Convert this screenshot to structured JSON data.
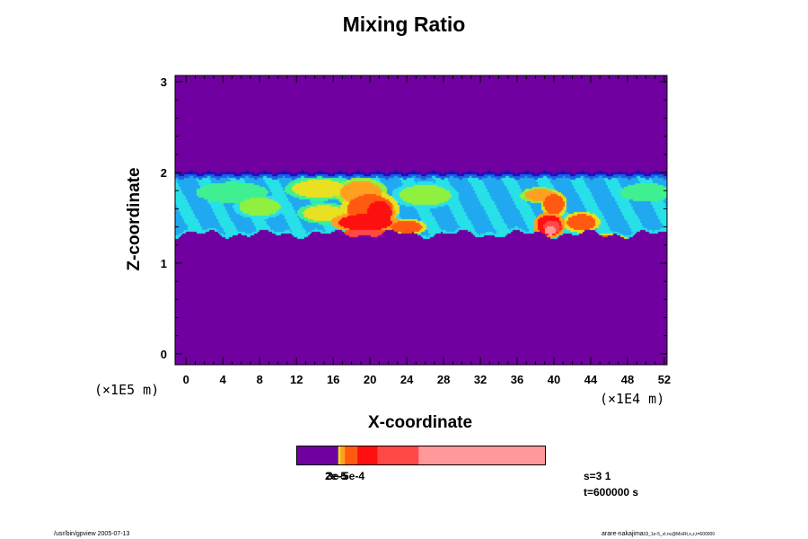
{
  "chart_data": {
    "type": "heatmap",
    "title": "Mixing Ratio",
    "xlabel": "X-coordinate",
    "ylabel": "Z-coordinate",
    "x_unit": "(×1E4 m)",
    "y_unit": "(×1E5 m)",
    "xlim": [
      -1.2,
      52.3
    ],
    "ylim": [
      -0.12,
      3.07
    ],
    "x_ticks": [
      0,
      4,
      8,
      12,
      16,
      20,
      24,
      28,
      32,
      36,
      40,
      44,
      48,
      52
    ],
    "y_ticks": [
      0,
      1,
      2,
      3
    ],
    "background_color": "#7000a0",
    "levels": [
      {
        "color": "#7000a0"
      },
      {
        "color": "#1010c0"
      },
      {
        "color": "#2060e0"
      },
      {
        "color": "#20a8f0"
      },
      {
        "color": "#28e0e8"
      },
      {
        "color": "#40f090"
      },
      {
        "color": "#90f040"
      },
      {
        "color": "#e8e020"
      },
      {
        "color": "#ffa020"
      },
      {
        "color": "#ff5a10"
      },
      {
        "color": "#ff1010"
      },
      {
        "color": "#ff4848"
      },
      {
        "color": "#ff9898"
      },
      {
        "color": "#ffffff"
      }
    ],
    "layer": {
      "z_top": 2.0,
      "z_bottom_mean": 1.32
    },
    "features": [
      {
        "x": 5,
        "z": 1.78,
        "level": 5,
        "sx": 3.5,
        "sz": 0.1
      },
      {
        "x": 8,
        "z": 1.62,
        "level": 6,
        "sx": 2.0,
        "sz": 0.09
      },
      {
        "x": 14.5,
        "z": 1.82,
        "level": 7,
        "sx": 2.6,
        "sz": 0.09
      },
      {
        "x": 15,
        "z": 1.55,
        "level": 7,
        "sx": 2.0,
        "sz": 0.08
      },
      {
        "x": 19,
        "z": 1.78,
        "level": 8,
        "sx": 2.0,
        "sz": 0.11
      },
      {
        "x": 20,
        "z": 1.6,
        "level": 9,
        "sx": 2.2,
        "sz": 0.14
      },
      {
        "x": 19.5,
        "z": 1.45,
        "level": 10,
        "sx": 2.6,
        "sz": 0.08
      },
      {
        "x": 21,
        "z": 1.55,
        "level": 10,
        "sx": 1.2,
        "sz": 0.12
      },
      {
        "x": 19.5,
        "z": 1.3,
        "level": 11,
        "sx": 2.0,
        "sz": 0.06
      },
      {
        "x": 19.8,
        "z": 1.24,
        "level": 12,
        "sx": 1.8,
        "sz": 0.04
      },
      {
        "x": 19.5,
        "z": 1.22,
        "level": 13,
        "sx": 1.2,
        "sz": 0.025
      },
      {
        "x": 24,
        "z": 1.4,
        "level": 9,
        "sx": 1.5,
        "sz": 0.06
      },
      {
        "x": 26,
        "z": 1.75,
        "level": 6,
        "sx": 2.5,
        "sz": 0.1
      },
      {
        "x": 38.5,
        "z": 1.75,
        "level": 8,
        "sx": 1.5,
        "sz": 0.06
      },
      {
        "x": 40,
        "z": 1.65,
        "level": 9,
        "sx": 1.0,
        "sz": 0.1
      },
      {
        "x": 39.5,
        "z": 1.42,
        "level": 10,
        "sx": 1.2,
        "sz": 0.1
      },
      {
        "x": 39.8,
        "z": 1.4,
        "level": 11,
        "sx": 0.8,
        "sz": 0.06
      },
      {
        "x": 39.6,
        "z": 1.36,
        "level": 12,
        "sx": 0.6,
        "sz": 0.04
      },
      {
        "x": 43,
        "z": 1.45,
        "level": 9,
        "sx": 1.4,
        "sz": 0.08
      },
      {
        "x": 46,
        "z": 1.25,
        "level": 9,
        "sx": 1.5,
        "sz": 0.05
      },
      {
        "x": 50,
        "z": 1.78,
        "level": 5,
        "sx": 2.5,
        "sz": 0.09
      }
    ],
    "colorbar": {
      "segments": [
        {
          "color": "#7000a0",
          "fraction": 0.168
        },
        {
          "color": "#e8e020",
          "fraction": 0.009
        },
        {
          "color": "#ffa020",
          "fraction": 0.018
        },
        {
          "color": "#ff5a10",
          "fraction": 0.05
        },
        {
          "color": "#ff1010",
          "fraction": 0.08
        },
        {
          "color": "#ff4848",
          "fraction": 0.165
        },
        {
          "color": "#ff9898",
          "fraction": 0.51
        }
      ],
      "labels": [
        "2e-5",
        "3e-5",
        "5e-4"
      ]
    },
    "annotations": {
      "series": "s=3 1",
      "time": "t=600000 s",
      "footer_left": "/usr/bin/gpview 2005-07-13",
      "footer_right": "arare-nakajima",
      "footer_right_small": "03_1e-5_vl.nc@MixRt,x,z,t=600000"
    }
  }
}
